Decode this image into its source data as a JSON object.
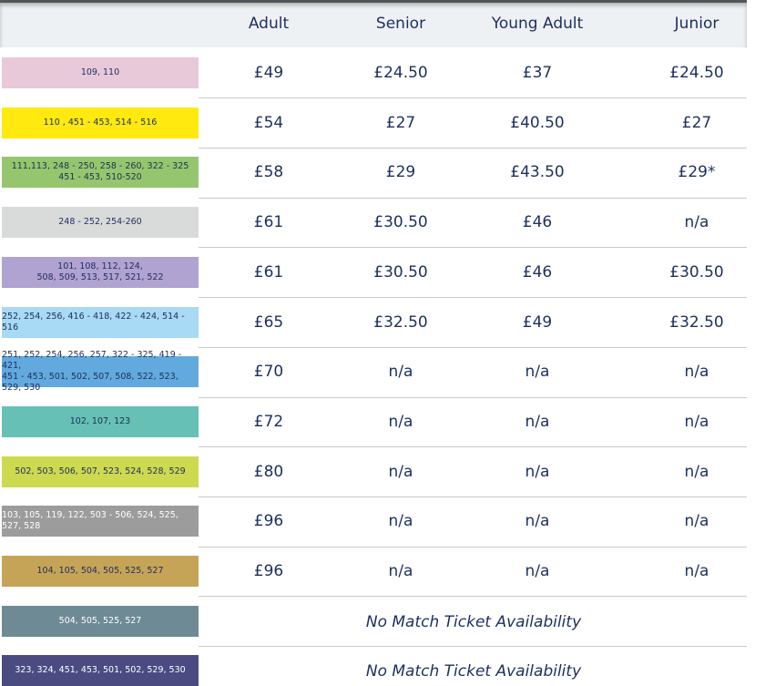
{
  "header": {
    "columns": [
      "Adult",
      "Senior",
      "Young Adult",
      "Junior"
    ]
  },
  "rows": [
    {
      "sections": [
        "109, 110"
      ],
      "color": "#e8c9d9",
      "label_color": "#1d2f5e",
      "prices": [
        "£49",
        "£24.50",
        "£37",
        "£24.50"
      ]
    },
    {
      "sections": [
        "110 , 451 - 453, 514 - 516"
      ],
      "color": "#ffe90f",
      "label_color": "#1d2f5e",
      "prices": [
        "£54",
        "£27",
        "£40.50",
        "£27"
      ]
    },
    {
      "sections": [
        "111,113, 248 - 250, 258 - 260, 322 - 325",
        "451 - 453, 510-520"
      ],
      "color": "#95c66d",
      "label_color": "#1d2f5e",
      "prices": [
        "£58",
        "£29",
        "£43.50",
        "£29*"
      ]
    },
    {
      "sections": [
        "248 - 252, 254-260"
      ],
      "color": "#d9dbdb",
      "label_color": "#1d2f5e",
      "prices": [
        "£61",
        "£30.50",
        "£46",
        "n/a"
      ]
    },
    {
      "sections": [
        "101, 108, 112, 124,",
        "508, 509, 513, 517, 521, 522"
      ],
      "color": "#b0a2d1",
      "label_color": "#1d2f5e",
      "prices": [
        "£61",
        "£30.50",
        "£46",
        "£30.50"
      ]
    },
    {
      "sections": [
        "252, 254, 256, 416 - 418, 422 - 424, 514 - 516"
      ],
      "color": "#a8d9f5",
      "label_color": "#1d2f5e",
      "prices": [
        "£65",
        "£32.50",
        "£49",
        "£32.50"
      ]
    },
    {
      "sections": [
        "251, 252, 254, 256, 257, 322 - 325, 419 - 421,",
        "451 - 453, 501, 502, 507, 508, 522, 523, 529, 530"
      ],
      "color": "#62a9de",
      "label_color": "#1d2f5e",
      "prices": [
        "£70",
        "n/a",
        "n/a",
        "n/a"
      ]
    },
    {
      "sections": [
        "102, 107, 123"
      ],
      "color": "#66c0b5",
      "label_color": "#1d2f5e",
      "prices": [
        "£72",
        "n/a",
        "n/a",
        "n/a"
      ]
    },
    {
      "sections": [
        "502, 503, 506, 507, 523, 524, 528, 529"
      ],
      "color": "#cdd94f",
      "label_color": "#1d2f5e",
      "prices": [
        "£80",
        "n/a",
        "n/a",
        "n/a"
      ]
    },
    {
      "sections": [
        "103, 105, 119, 122, 503 - 506, 524, 525, 527, 528"
      ],
      "color": "#9c9c9c",
      "label_color": "#ffffff",
      "prices": [
        "£96",
        "n/a",
        "n/a",
        "n/a"
      ]
    },
    {
      "sections": [
        "104, 105, 504, 505, 525, 527"
      ],
      "color": "#c6a457",
      "label_color": "#1d2f5e",
      "prices": [
        "£96",
        "n/a",
        "n/a",
        "n/a"
      ]
    },
    {
      "sections": [
        "504, 505, 525, 527"
      ],
      "color": "#6e8a95",
      "label_color": "#ffffff",
      "note": "No Match Ticket Availability"
    },
    {
      "sections": [
        "323, 324, 451, 453, 501, 502, 529, 530"
      ],
      "color": "#4b4b82",
      "label_color": "#ffffff",
      "note": "No Match Ticket Availability"
    }
  ]
}
